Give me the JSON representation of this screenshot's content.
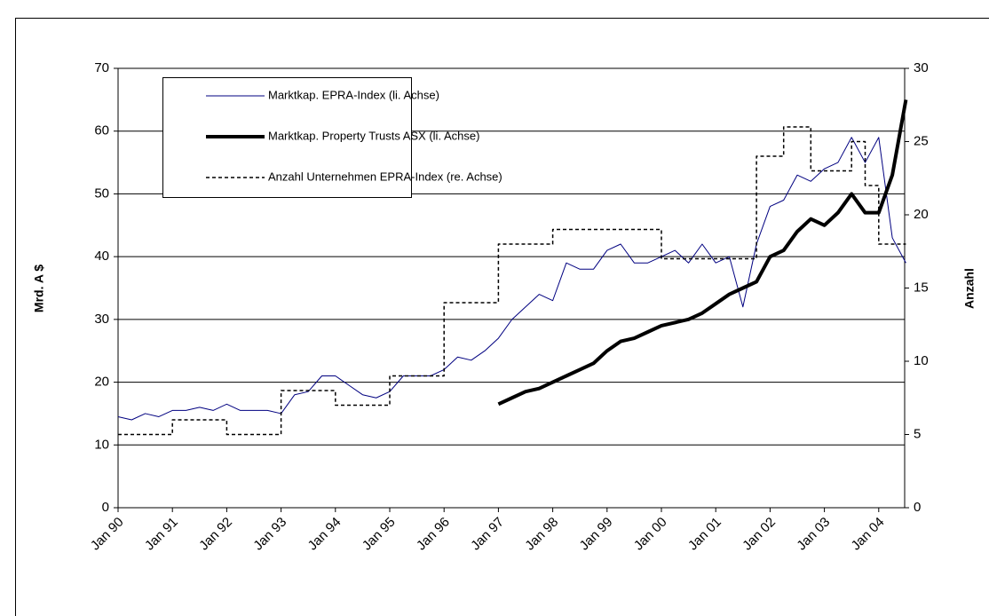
{
  "chart_data": {
    "type": "line",
    "ylabel": "Mrd. A $",
    "y2label": "Anzahl",
    "categories": [
      "Jan 90",
      null,
      null,
      null,
      "Jan 91",
      null,
      null,
      null,
      "Jan 92",
      null,
      null,
      null,
      "Jan 93",
      null,
      null,
      null,
      "Jan 94",
      null,
      null,
      null,
      "Jan 95",
      null,
      null,
      null,
      "Jan 96",
      null,
      null,
      null,
      "Jan 97",
      null,
      null,
      null,
      "Jan 98",
      null,
      null,
      null,
      "Jan 99",
      null,
      null,
      null,
      "Jan 00",
      null,
      null,
      null,
      "Jan 01",
      null,
      null,
      null,
      "Jan 02",
      null,
      null,
      null,
      "Jan 03",
      null,
      null,
      null,
      "Jan 04",
      null,
      null
    ],
    "series": [
      {
        "name": "Marktkap. EPRA-Index (li. Achse)",
        "color": "#000080",
        "width": 1,
        "dash": false,
        "values": [
          14.5,
          14,
          15,
          14.5,
          15.5,
          15.5,
          16,
          15.5,
          16.5,
          15.5,
          15.5,
          15.5,
          15,
          18,
          18.5,
          21,
          21,
          19.5,
          18,
          17.5,
          18.5,
          21,
          21,
          21,
          22,
          24,
          23.5,
          25,
          27,
          30,
          32,
          34,
          33,
          39,
          38,
          38,
          41,
          42,
          39,
          39,
          40,
          41,
          39,
          42,
          39,
          40,
          32,
          42,
          48,
          49,
          53,
          52,
          54,
          55,
          59,
          55,
          59,
          43,
          39
        ]
      },
      {
        "name": "Marktkap. Property Trusts ASX (li. Achse)",
        "color": "#000000",
        "width": 4,
        "dash": false,
        "values": [
          null,
          null,
          null,
          null,
          null,
          null,
          null,
          null,
          null,
          null,
          null,
          null,
          null,
          null,
          null,
          null,
          null,
          null,
          null,
          null,
          null,
          null,
          null,
          null,
          null,
          null,
          null,
          null,
          16.5,
          17.5,
          18.5,
          19,
          20,
          21,
          22,
          23,
          25,
          26.5,
          27,
          28,
          29,
          29.5,
          30,
          31,
          32.5,
          34,
          35,
          36,
          40,
          41,
          44,
          46,
          45,
          47,
          50,
          47,
          47,
          53,
          65
        ]
      },
      {
        "name": "Anzahl Unternehmen EPRA-Index (re. Achse)",
        "color": "#000000",
        "width": 1.5,
        "dash": true,
        "axis": "y2",
        "values": [
          5,
          5,
          5,
          5,
          6,
          6,
          6,
          6,
          5,
          5,
          5,
          5,
          8,
          8,
          8,
          8,
          7,
          7,
          7,
          7,
          9,
          9,
          9,
          9,
          14,
          14,
          14,
          14,
          18,
          18,
          18,
          18,
          19,
          19,
          19,
          19,
          19,
          19,
          19,
          19,
          17,
          17,
          17,
          17,
          17,
          17,
          17,
          24,
          24,
          26,
          26,
          23,
          23,
          23,
          25,
          22,
          18,
          18,
          18
        ]
      }
    ],
    "ylim": [
      0,
      70
    ],
    "yticks": [
      0,
      10,
      20,
      30,
      40,
      50,
      60,
      70
    ],
    "y2lim": [
      0,
      30
    ],
    "y2ticks": [
      0,
      5,
      10,
      15,
      20,
      25,
      30
    ],
    "grid": true,
    "legend": "top-left"
  }
}
